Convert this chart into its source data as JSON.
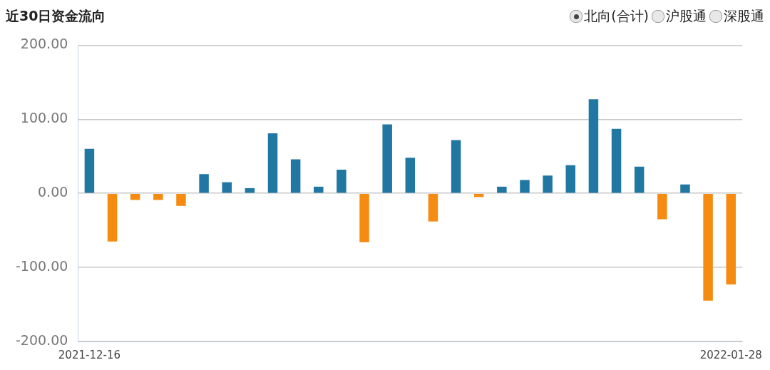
{
  "chart_data": {
    "type": "bar",
    "title": "近30日资金流向",
    "annotations": [
      "北向(合计)",
      "沪股通",
      "深股通"
    ],
    "categories": [
      "2021-12-16",
      null,
      null,
      null,
      null,
      null,
      null,
      null,
      null,
      null,
      null,
      null,
      null,
      null,
      null,
      null,
      null,
      null,
      null,
      null,
      null,
      null,
      null,
      null,
      null,
      null,
      null,
      null,
      "2022-01-28"
    ],
    "values": [
      60,
      -65,
      -9,
      -9,
      -17,
      26,
      15,
      7,
      81,
      46,
      9,
      32,
      -66,
      93,
      48,
      -38,
      72,
      -5,
      9,
      18,
      24,
      38,
      127,
      87,
      36,
      -35,
      12,
      -145,
      -123
    ],
    "colors": [
      "#1f77a2",
      "#f68b12",
      "#f68b12",
      "#f68b12",
      "#f68b12",
      "#1f77a2",
      "#1f77a2",
      "#1f77a2",
      "#1f77a2",
      "#1f77a2",
      "#1f77a2",
      "#1f77a2",
      "#f68b12",
      "#1f77a2",
      "#1f77a2",
      "#f68b12",
      "#1f77a2",
      "#f68b12",
      "#1f77a2",
      "#1f77a2",
      "#1f77a2",
      "#1f77a2",
      "#1f77a2",
      "#1f77a2",
      "#1f77a2",
      "#f68b12",
      "#1f77a2",
      "#f68b12",
      "#f68b12"
    ],
    "ylim": [
      -200,
      200
    ],
    "yticks": [
      {
        "value": -200,
        "label": "-200.00"
      },
      {
        "value": -100,
        "label": "-100.00"
      },
      {
        "value": 0,
        "label": "0.00"
      },
      {
        "value": 100,
        "label": "100.00"
      },
      {
        "value": 200,
        "label": "200.00"
      }
    ],
    "grid": "y",
    "legend": false
  }
}
